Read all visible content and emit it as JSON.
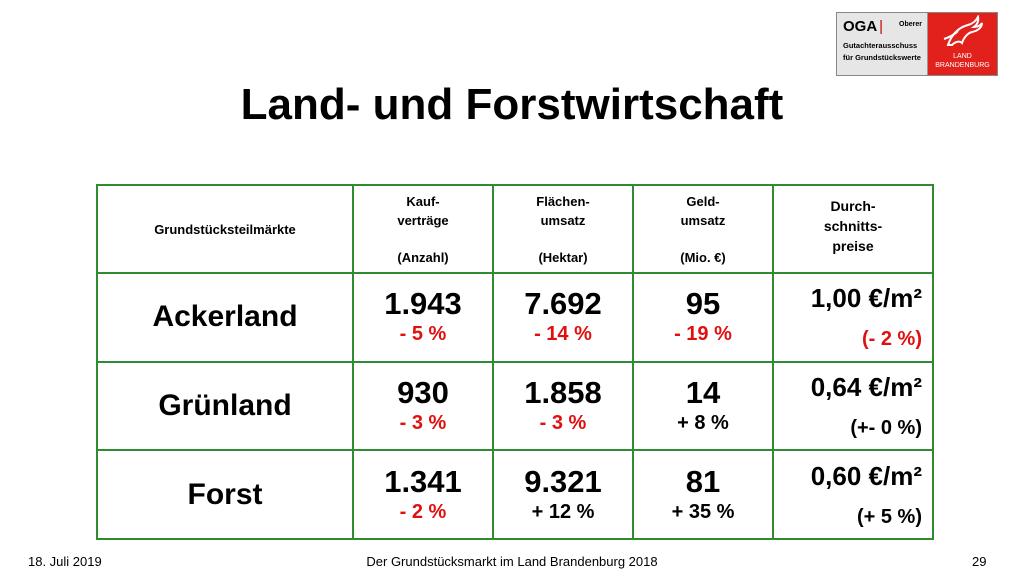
{
  "logo": {
    "abbr": "OGA",
    "sep": "|",
    "line1b": "Oberer",
    "line2": "Gutachterausschuss",
    "line3": "für Grundstückswerte",
    "brand1": "LAND",
    "brand2": "BRANDENBURG",
    "brand_color": "#e2211c"
  },
  "title": "Land- und Forstwirtschaft",
  "table": {
    "header": {
      "market": "Grundstücksteilmärkte",
      "col1": {
        "l1": "Kauf-",
        "l2": "verträge",
        "unit": "(Anzahl)"
      },
      "col2": {
        "l1": "Flächen-",
        "l2": "umsatz",
        "unit": "(Hektar)"
      },
      "col3": {
        "l1": "Geld-",
        "l2": "umsatz",
        "unit": "(Mio. €)"
      },
      "col4": {
        "l1": "Durch-",
        "l2": "schnitts-",
        "l3": "preise"
      }
    },
    "rows": [
      {
        "label": "Ackerland",
        "c1": {
          "value": "1.943",
          "change": "- 5 %"
        },
        "c2": {
          "value": "7.692",
          "change": "- 14 %"
        },
        "c3": {
          "value": "95",
          "change": "- 19 %"
        },
        "c4": {
          "value": "1,00 €/m²",
          "change": "(- 2 %)"
        }
      },
      {
        "label": "Grünland",
        "c1": {
          "value": "930",
          "change": "- 3 %"
        },
        "c2": {
          "value": "1.858",
          "change": "- 3 %"
        },
        "c3": {
          "value": "14",
          "change": "+ 8 %"
        },
        "c4": {
          "value": "0,64 €/m²",
          "change": "(+- 0 %)"
        }
      },
      {
        "label": "Forst",
        "c1": {
          "value": "1.341",
          "change": "- 2 %"
        },
        "c2": {
          "value": "9.321",
          "change": "+ 12 %"
        },
        "c3": {
          "value": "81",
          "change": "+ 35 %"
        },
        "c4": {
          "value": "0,60 €/m²",
          "change": "(+ 5 %)"
        }
      }
    ],
    "colors": {
      "border": "#2e8b2e",
      "negative": "#e01010",
      "positive": "#000000"
    }
  },
  "footer": {
    "date": "18. Juli 2019",
    "center": "Der Grundstücksmarkt im Land Brandenburg 2018",
    "page": "29"
  }
}
